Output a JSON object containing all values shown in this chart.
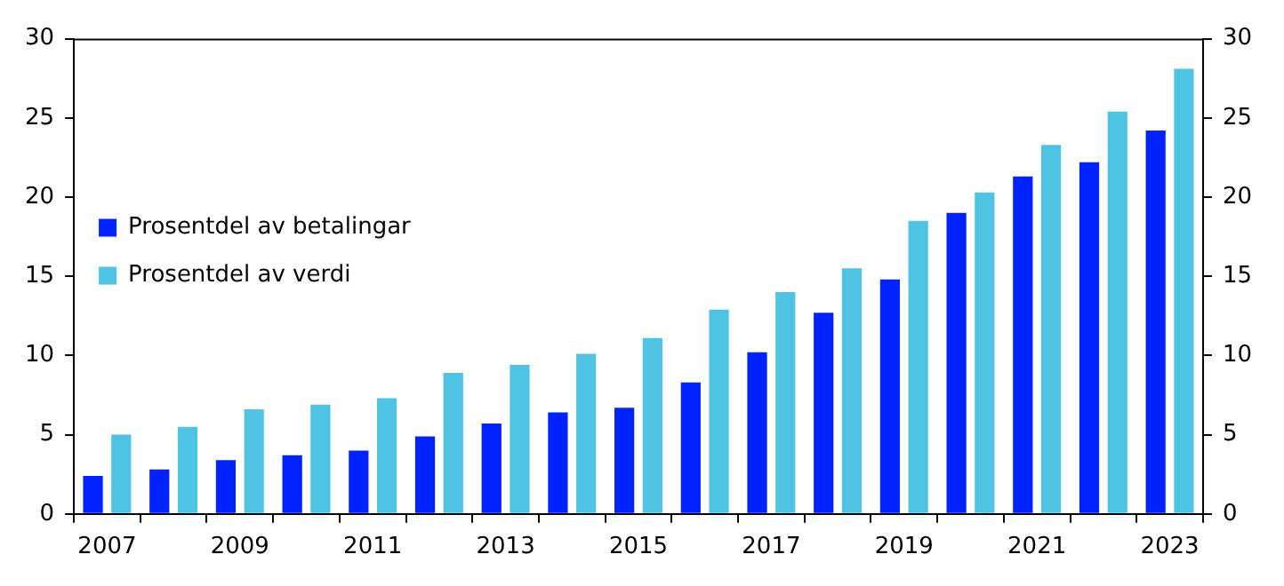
{
  "chart_data": {
    "type": "bar",
    "categories": [
      "2007",
      null,
      "2009",
      null,
      "2011",
      null,
      "2013",
      null,
      "2015",
      null,
      "2017",
      null,
      "2019",
      null,
      "2021",
      null,
      "2023"
    ],
    "series": [
      {
        "name": "Prosentdel av betalingar",
        "color": "#0022ff",
        "values": [
          2.4,
          2.8,
          3.4,
          3.7,
          4.0,
          4.9,
          5.7,
          6.4,
          6.7,
          8.3,
          10.2,
          12.7,
          14.8,
          19.0,
          21.3,
          22.2,
          24.2
        ]
      },
      {
        "name": "Prosentdel av verdi",
        "color": "#4fc3e4",
        "values": [
          5.0,
          5.5,
          6.6,
          6.9,
          7.3,
          8.9,
          9.4,
          10.1,
          11.1,
          12.9,
          14.0,
          15.5,
          18.5,
          20.3,
          23.3,
          25.4,
          28.1
        ]
      }
    ],
    "ylim": [
      0,
      30
    ],
    "yticks": [
      0,
      5,
      10,
      15,
      20,
      25,
      30
    ],
    "y2lim": [
      0,
      30
    ],
    "y2ticks": [
      0,
      5,
      10,
      15,
      20,
      25,
      30
    ],
    "legend": "top",
    "grid": false
  }
}
